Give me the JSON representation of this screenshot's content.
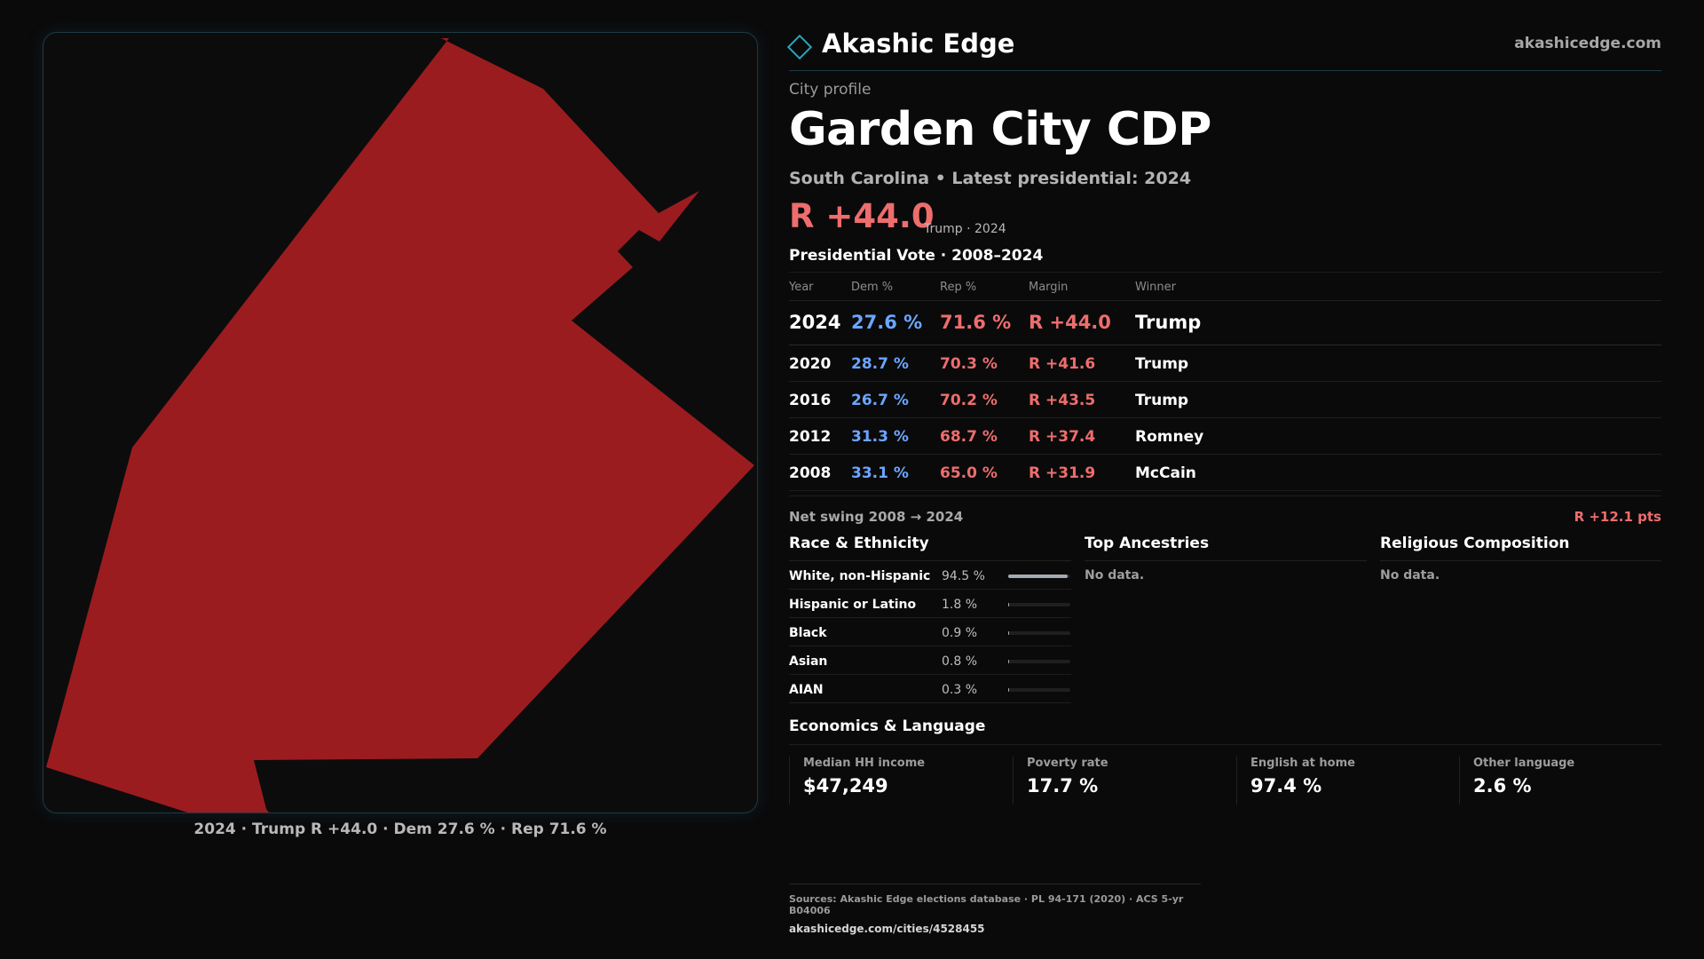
{
  "brand": {
    "name": "Akashic Edge",
    "url": "akashicedge.com"
  },
  "colors": {
    "republican": "#ee6d6d",
    "democrat": "#6ba6ff",
    "map_fill": "#9b1c1f",
    "accent": "#2aa6b8"
  },
  "map": {
    "caption": "2024 · Trump R +44.0 · Dem 27.6 % · Rep 71.6 %"
  },
  "profile": {
    "kicker": "City profile",
    "title": "Garden City CDP",
    "subtitle": "South Carolina • Latest presidential: 2024",
    "margin": "R +44.0",
    "margin_note": "Trump · 2024"
  },
  "vote": {
    "title": "Presidential Vote · 2008–2024",
    "headers": {
      "year": "Year",
      "dem": "Dem %",
      "rep": "Rep %",
      "margin": "Margin",
      "winner": "Winner"
    },
    "rows": [
      {
        "year": "2024",
        "dem": "27.6 %",
        "rep": "71.6 %",
        "margin": "R +44.0",
        "winner": "Trump"
      },
      {
        "year": "2020",
        "dem": "28.7 %",
        "rep": "70.3 %",
        "margin": "R +41.6",
        "winner": "Trump"
      },
      {
        "year": "2016",
        "dem": "26.7 %",
        "rep": "70.2 %",
        "margin": "R +43.5",
        "winner": "Trump"
      },
      {
        "year": "2012",
        "dem": "31.3 %",
        "rep": "68.7 %",
        "margin": "R +37.4",
        "winner": "Romney"
      },
      {
        "year": "2008",
        "dem": "33.1 %",
        "rep": "65.0 %",
        "margin": "R +31.9",
        "winner": "McCain"
      }
    ],
    "swing_label": "Net swing 2008 → 2024",
    "swing_value": "R +12.1 pts"
  },
  "race": {
    "title": "Race & Ethnicity",
    "rows": [
      {
        "label": "White, non-Hispanic",
        "value": "94.5 %",
        "fraction": 0.945
      },
      {
        "label": "Hispanic or Latino",
        "value": "1.8 %",
        "fraction": 0.018
      },
      {
        "label": "Black",
        "value": "0.9 %",
        "fraction": 0.009
      },
      {
        "label": "Asian",
        "value": "0.8 %",
        "fraction": 0.008
      },
      {
        "label": "AIAN",
        "value": "0.3 %",
        "fraction": 0.003
      }
    ]
  },
  "ancestry": {
    "title": "Top Ancestries",
    "empty": "No data."
  },
  "religion": {
    "title": "Religious Composition",
    "empty": "No data."
  },
  "economics": {
    "title": "Economics & Language",
    "cards": [
      {
        "label": "Median HH income",
        "value": "$47,249"
      },
      {
        "label": "Poverty rate",
        "value": "17.7 %"
      },
      {
        "label": "English at home",
        "value": "97.4 %"
      },
      {
        "label": "Other language",
        "value": "2.6 %"
      }
    ]
  },
  "sources": {
    "line1": "Sources: Akashic Edge elections database · PL 94-171 (2020) · ACS 5-yr B04006",
    "line2": "akashicedge.com/cities/4528455"
  }
}
